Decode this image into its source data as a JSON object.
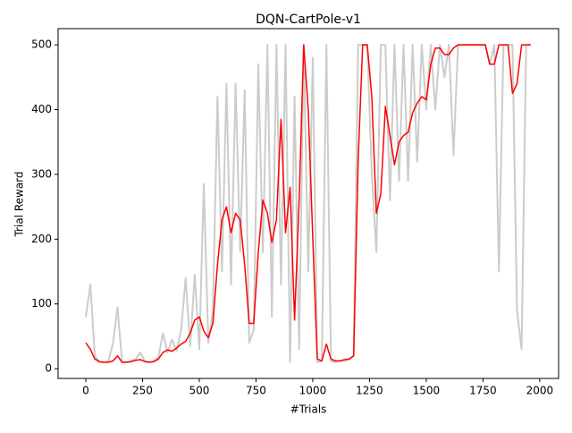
{
  "chart_data": {
    "type": "line",
    "title": "DQN-CartPole-v1",
    "x_label": "#Trials",
    "y_label": "Trial Reward",
    "x": [
      0,
      20,
      40,
      60,
      80,
      100,
      120,
      140,
      160,
      180,
      200,
      220,
      240,
      260,
      280,
      300,
      320,
      340,
      360,
      380,
      400,
      420,
      440,
      460,
      480,
      500,
      520,
      540,
      560,
      580,
      600,
      620,
      640,
      660,
      680,
      700,
      720,
      740,
      760,
      780,
      800,
      820,
      840,
      860,
      880,
      900,
      920,
      940,
      960,
      980,
      1000,
      1020,
      1040,
      1060,
      1080,
      1100,
      1120,
      1140,
      1160,
      1180,
      1200,
      1220,
      1240,
      1260,
      1280,
      1300,
      1320,
      1340,
      1360,
      1380,
      1400,
      1420,
      1440,
      1460,
      1480,
      1500,
      1520,
      1540,
      1560,
      1580,
      1600,
      1620,
      1640,
      1660,
      1680,
      1700,
      1720,
      1740,
      1760,
      1780,
      1800,
      1820,
      1840,
      1860,
      1880,
      1900,
      1920,
      1940,
      1960
    ],
    "series": [
      {
        "color": "#cccccc",
        "values": [
          80,
          130,
          20,
          10,
          10,
          12,
          40,
          95,
          10,
          10,
          12,
          15,
          25,
          12,
          10,
          12,
          18,
          55,
          25,
          45,
          28,
          60,
          140,
          35,
          145,
          30,
          285,
          40,
          90,
          420,
          150,
          440,
          130,
          440,
          180,
          430,
          40,
          60,
          470,
          180,
          500,
          80,
          500,
          130,
          500,
          10,
          420,
          30,
          500,
          150,
          480,
          10,
          12,
          500,
          12,
          10,
          12,
          12,
          14,
          20,
          500,
          500,
          500,
          300,
          180,
          500,
          500,
          260,
          500,
          290,
          500,
          290,
          500,
          320,
          500,
          400,
          500,
          400,
          500,
          450,
          500,
          330,
          500,
          500,
          500,
          500,
          500,
          500,
          500,
          470,
          500,
          150,
          500,
          500,
          500,
          90,
          30,
          500,
          500
        ]
      },
      {
        "color": "#ff0000",
        "values": [
          40,
          30,
          15,
          11,
          10,
          10,
          12,
          20,
          10,
          10,
          11,
          13,
          14,
          11,
          10,
          11,
          15,
          25,
          29,
          27,
          32,
          38,
          42,
          55,
          75,
          80,
          58,
          48,
          70,
          160,
          230,
          250,
          210,
          240,
          230,
          160,
          70,
          70,
          180,
          260,
          240,
          195,
          230,
          385,
          210,
          280,
          75,
          260,
          500,
          400,
          200,
          15,
          12,
          38,
          15,
          12,
          12,
          14,
          15,
          20,
          320,
          500,
          500,
          420,
          240,
          270,
          405,
          360,
          315,
          350,
          360,
          365,
          395,
          410,
          420,
          415,
          470,
          495,
          495,
          485,
          485,
          495,
          500,
          500,
          500,
          500,
          500,
          500,
          500,
          470,
          470,
          500,
          500,
          500,
          425,
          440,
          500,
          500,
          500
        ]
      }
    ],
    "xlim": [
      -122,
      2083
    ],
    "ylim": [
      -15,
      525
    ],
    "xticks": [
      0,
      250,
      500,
      750,
      1000,
      1250,
      1500,
      1750,
      2000
    ],
    "yticks": [
      0,
      100,
      200,
      300,
      400,
      500
    ]
  }
}
